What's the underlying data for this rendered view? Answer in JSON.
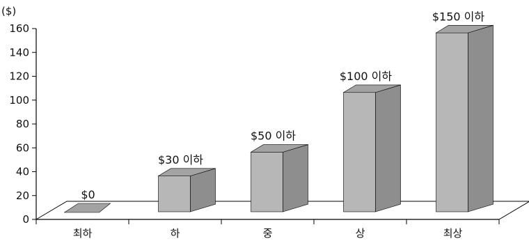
{
  "chart_data": {
    "type": "bar",
    "style": "3d-column",
    "ylabel": "($)",
    "ylim": [
      0,
      160
    ],
    "yticks": [
      0,
      20,
      40,
      60,
      80,
      100,
      120,
      140,
      160
    ],
    "categories": [
      "최하",
      "하",
      "중",
      "상",
      "최상"
    ],
    "values": [
      0,
      30,
      50,
      100,
      150
    ],
    "data_labels": [
      "$0",
      "$30 이하",
      "$50 이하",
      "$100 이하",
      "$150 이하"
    ],
    "grid": false,
    "legend": "none",
    "colors": {
      "front": "#b7b7b7",
      "top": "#a3a3a3",
      "side": "#8e8e8e",
      "outline": "#000000"
    }
  }
}
